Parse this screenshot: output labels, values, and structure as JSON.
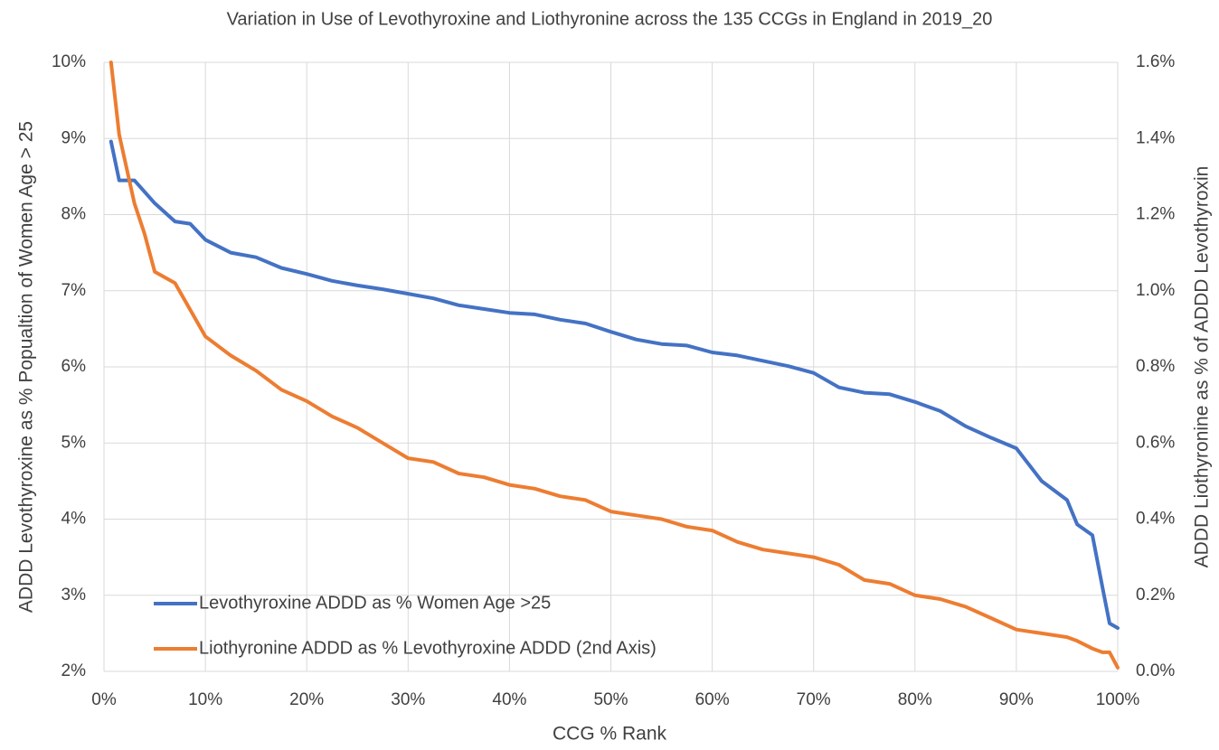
{
  "chart_data": {
    "type": "line",
    "title": "Variation in Use of Levothyroxine and Liothyronine across the 135 CCGs in England in 2019_20",
    "xlabel": "CCG % Rank",
    "ylabel": "ADDD Levothyroxine as % Popualtion of Women Age > 25",
    "y2label": "ADDD Liothyronine as % of ADDD Levothyroxin",
    "x": [
      0.7,
      1.5,
      3,
      4,
      5,
      7,
      8.5,
      10,
      12.5,
      15,
      17.5,
      20,
      22.5,
      25,
      27.5,
      30,
      32.5,
      35,
      37.5,
      40,
      42.5,
      45,
      47.5,
      50,
      52.5,
      55,
      57.5,
      60,
      62.5,
      65,
      67.5,
      70,
      72.5,
      75,
      77.5,
      80,
      82.5,
      85,
      87.5,
      90,
      92.5,
      95,
      96,
      97.5,
      98.5,
      99.2,
      100
    ],
    "series": [
      {
        "name": "Levothyroxine ADDD as % Women Age >25",
        "color": "#4472c4",
        "values": [
          8.96,
          8.45,
          8.45,
          8.3,
          8.15,
          7.91,
          7.88,
          7.67,
          7.5,
          7.44,
          7.3,
          7.22,
          7.13,
          7.07,
          7.02,
          6.96,
          6.9,
          6.81,
          6.76,
          6.71,
          6.69,
          6.62,
          6.57,
          6.46,
          6.36,
          6.3,
          6.28,
          6.19,
          6.15,
          6.08,
          6.01,
          5.92,
          5.73,
          5.66,
          5.64,
          5.54,
          5.42,
          5.22,
          5.07,
          4.93,
          4.5,
          4.25,
          3.93,
          3.79,
          3.1,
          2.63,
          2.57
        ]
      },
      {
        "name": "Liothyronine ADDD as % Levothyroxine ADDD (2nd Axis)",
        "color": "#ed7d31",
        "axis": "y2",
        "values": [
          1.6,
          1.41,
          1.23,
          1.15,
          1.05,
          1.02,
          0.95,
          0.88,
          0.83,
          0.79,
          0.74,
          0.71,
          0.67,
          0.64,
          0.6,
          0.56,
          0.55,
          0.52,
          0.51,
          0.49,
          0.48,
          0.46,
          0.45,
          0.42,
          0.41,
          0.4,
          0.38,
          0.37,
          0.34,
          0.32,
          0.31,
          0.3,
          0.28,
          0.24,
          0.23,
          0.2,
          0.19,
          0.17,
          0.14,
          0.11,
          0.1,
          0.09,
          0.08,
          0.06,
          0.05,
          0.05,
          0.01
        ]
      }
    ],
    "xlim": [
      0,
      100
    ],
    "xticks": [
      {
        "value": 0,
        "label": "0%"
      },
      {
        "value": 10,
        "label": "10%"
      },
      {
        "value": 20,
        "label": "20%"
      },
      {
        "value": 30,
        "label": "30%"
      },
      {
        "value": 40,
        "label": "40%"
      },
      {
        "value": 50,
        "label": "50%"
      },
      {
        "value": 60,
        "label": "60%"
      },
      {
        "value": 70,
        "label": "70%"
      },
      {
        "value": 80,
        "label": "80%"
      },
      {
        "value": 90,
        "label": "90%"
      },
      {
        "value": 100,
        "label": "100%"
      }
    ],
    "ylim": [
      2,
      10
    ],
    "yticks": [
      {
        "value": 2,
        "label": "2%"
      },
      {
        "value": 3,
        "label": "3%"
      },
      {
        "value": 4,
        "label": "4%"
      },
      {
        "value": 5,
        "label": "5%"
      },
      {
        "value": 6,
        "label": "6%"
      },
      {
        "value": 7,
        "label": "7%"
      },
      {
        "value": 8,
        "label": "8%"
      },
      {
        "value": 9,
        "label": "9%"
      },
      {
        "value": 10,
        "label": "10%"
      }
    ],
    "y2lim": [
      0,
      1.6
    ],
    "y2ticks": [
      {
        "value": 0,
        "label": "0.0%"
      },
      {
        "value": 0.2,
        "label": "0.2%"
      },
      {
        "value": 0.4,
        "label": "0.4%"
      },
      {
        "value": 0.6,
        "label": "0.6%"
      },
      {
        "value": 0.8,
        "label": "0.8%"
      },
      {
        "value": 1.0,
        "label": "1.0%"
      },
      {
        "value": 1.2,
        "label": "1.2%"
      },
      {
        "value": 1.4,
        "label": "1.4%"
      },
      {
        "value": 1.6,
        "label": "1.6%"
      }
    ],
    "grid": true,
    "legend": "lower left"
  }
}
